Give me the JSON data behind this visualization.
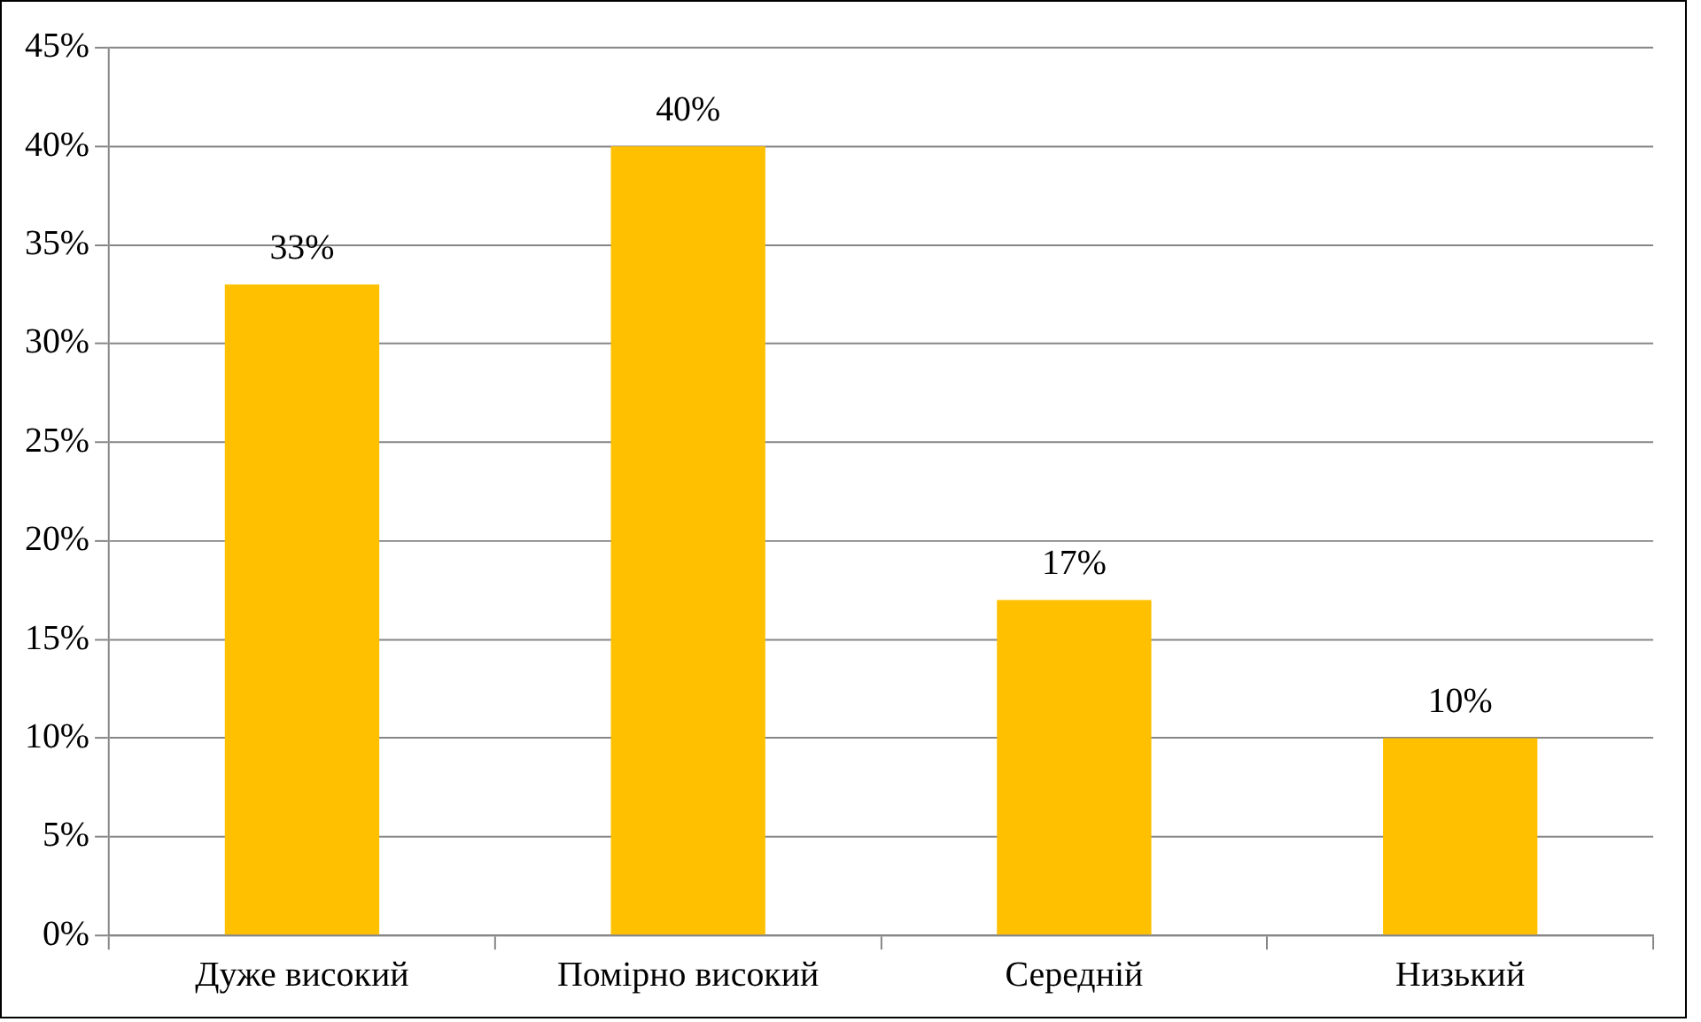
{
  "chart_data": {
    "type": "bar",
    "categories": [
      "Дуже високий",
      "Помірно високий",
      "Середній",
      "Низький"
    ],
    "values": [
      33,
      40,
      17,
      10
    ],
    "color": "#ffc000",
    "value_labels": [
      "33%",
      "40%",
      "17%",
      "10%"
    ],
    "ylim": [
      0,
      45
    ],
    "yticks": [
      {
        "value": 0,
        "label": "0%"
      },
      {
        "value": 5,
        "label": "5%"
      },
      {
        "value": 10,
        "label": "10%"
      },
      {
        "value": 15,
        "label": "15%"
      },
      {
        "value": 20,
        "label": "20%"
      },
      {
        "value": 25,
        "label": "25%"
      },
      {
        "value": 30,
        "label": "30%"
      },
      {
        "value": 35,
        "label": "35%"
      },
      {
        "value": 40,
        "label": "40%"
      },
      {
        "value": 45,
        "label": "45%"
      }
    ],
    "grid": "y",
    "legend": false
  }
}
